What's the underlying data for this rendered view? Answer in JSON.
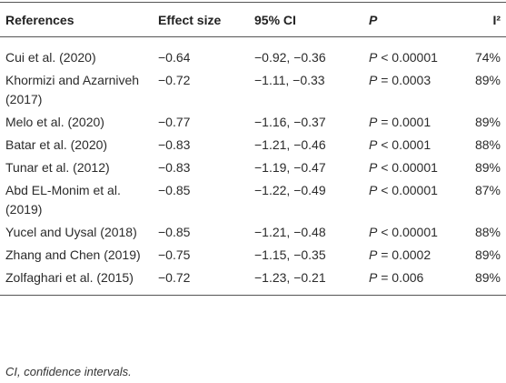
{
  "table": {
    "header": [
      "References",
      "Effect size",
      "95% CI",
      "P",
      "I²"
    ],
    "rows": [
      [
        "Cui et al. (2020)",
        "−0.64",
        "−0.92, −0.36",
        "P < 0.00001",
        "74%"
      ],
      [
        "Khormizi and Azarniveh (2017)",
        "−0.72",
        "−1.11, −0.33",
        "P = 0.0003",
        "89%"
      ],
      [
        "Melo et al. (2020)",
        "−0.77",
        "−1.16, −0.37",
        "P = 0.0001",
        "89%"
      ],
      [
        "Batar et al. (2020)",
        "−0.83",
        "−1.21, −0.46",
        "P < 0.0001",
        "88%"
      ],
      [
        "Tunar et al. (2012)",
        "−0.83",
        "−1.19, −0.47",
        "P < 0.00001",
        "89%"
      ],
      [
        "Abd EL-Monim et al. (2019)",
        "−0.85",
        "−1.22, −0.49",
        "P < 0.00001",
        "87%"
      ],
      [
        "Yucel and Uysal (2018)",
        "−0.85",
        "−1.21, −0.48",
        "P < 0.00001",
        "88%"
      ],
      [
        "Zhang and Chen (2019)",
        "−0.75",
        "−1.15, −0.35",
        "P = 0.0002",
        "89%"
      ],
      [
        "Zolfaghari et al. (2015)",
        "−0.72",
        "−1.23, −0.21",
        "P = 0.006",
        "89%"
      ]
    ]
  },
  "footnote": "CI, confidence intervals."
}
